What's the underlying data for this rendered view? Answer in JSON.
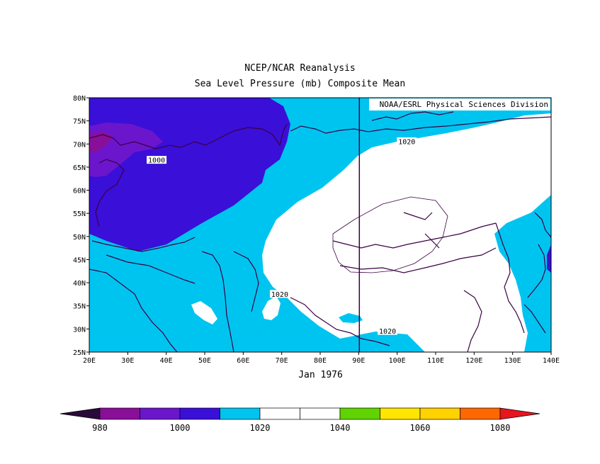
{
  "title": "NCEP/NCAR Reanalysis",
  "subtitle": "Sea Level Pressure (mb) Composite Mean",
  "credit": "NOAA/ESRL Physical Sciences Division",
  "date_label": "Jan 1976",
  "colors": {
    "c980": "#2a0a3a",
    "c990": "#8a0f98",
    "c995": "#6b16cc",
    "c1000": "#3a0fd8",
    "c1010": "#00c4f0",
    "c1020": "#ffffff",
    "c1030": "#ffffff",
    "c1040": "#5fd400",
    "c1050": "#ffe600",
    "c1060": "#ffd200",
    "c1070": "#ff6800",
    "c1080": "#e8141e",
    "coast": "#3a0042"
  },
  "chart_data": {
    "type": "heatmap",
    "title": "Sea Level Pressure (mb) Composite Mean",
    "lon_range": [
      20,
      140
    ],
    "lat_range": [
      25,
      80
    ],
    "x_ticks": [
      "20E",
      "30E",
      "40E",
      "50E",
      "60E",
      "70E",
      "80E",
      "90E",
      "100E",
      "110E",
      "120E",
      "130E",
      "140E"
    ],
    "y_ticks": [
      "25N",
      "30N",
      "35N",
      "40N",
      "45N",
      "50N",
      "55N",
      "60N",
      "65N",
      "70N",
      "75N",
      "80N"
    ],
    "contour_labels": [
      {
        "text": "1000",
        "lon": 37.5,
        "lat": 66.5
      },
      {
        "text": "1020",
        "lon": 102.5,
        "lat": 70.5
      },
      {
        "text": "1020",
        "lon": 69.5,
        "lat": 37.5
      },
      {
        "text": "1020",
        "lon": 97.5,
        "lat": 29.5
      }
    ],
    "colorbar": {
      "levels": [
        980,
        990,
        1000,
        1010,
        1020,
        1030,
        1040,
        1050,
        1060,
        1070,
        1080
      ],
      "labels": [
        "980",
        "1000",
        "1020",
        "1040",
        "1060",
        "1080"
      ]
    }
  }
}
